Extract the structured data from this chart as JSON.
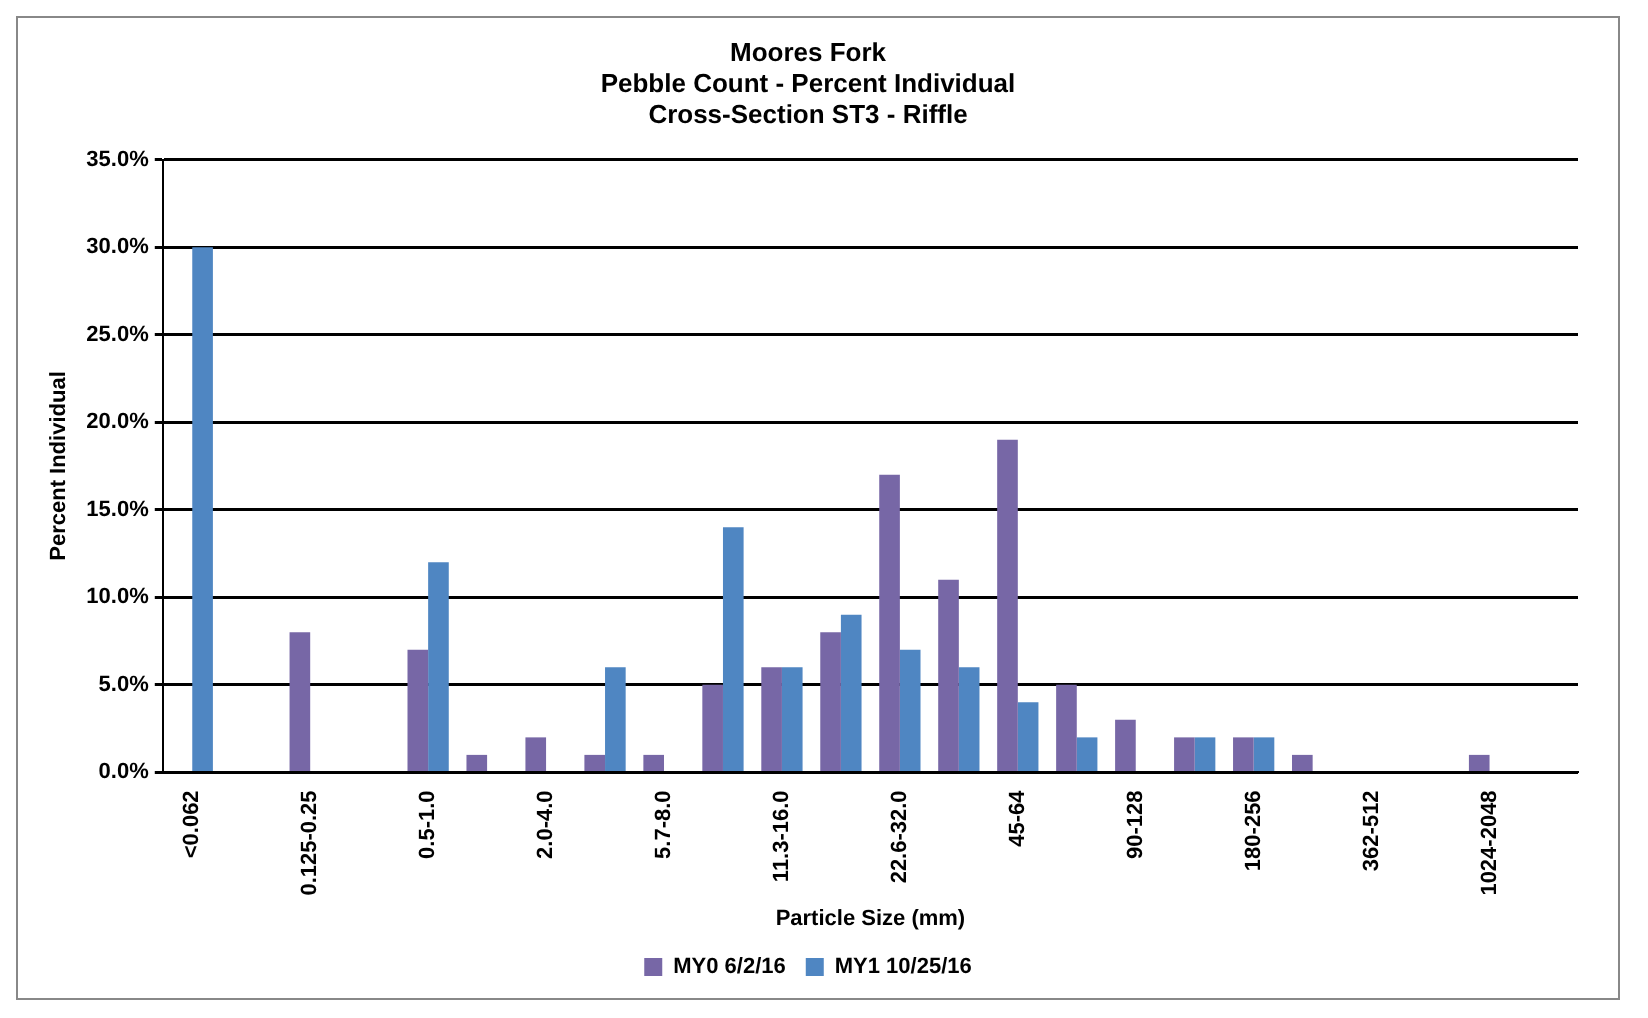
{
  "chart_data": {
    "type": "bar",
    "title": "Moores Fork\nPebble Count - Percent Individual\nCross-Section ST3 - Riffle",
    "xlabel": "Particle Size (mm)",
    "ylabel": "Percent Individual",
    "categories": [
      "<0.062",
      null,
      "0.125-0.25",
      null,
      "0.5-1.0",
      null,
      "2.0-4.0",
      null,
      "5.7-8.0",
      null,
      "11.3-16.0",
      null,
      "22.6-32.0",
      null,
      "45-64",
      null,
      "90-128",
      null,
      "180-256",
      null,
      "362-512",
      null,
      "1024-2048",
      null
    ],
    "series": [
      {
        "name": "MY0 6/2/16",
        "color": "#7767a6",
        "values": [
          0,
          0,
          8,
          0,
          7,
          1,
          2,
          1,
          1,
          5,
          6,
          8,
          17,
          11,
          19,
          5,
          3,
          2,
          2,
          1,
          0,
          0,
          1,
          0
        ]
      },
      {
        "name": "MY1 10/25/16",
        "color": "#4f86c2",
        "values": [
          30,
          0,
          0,
          0,
          12,
          0,
          0,
          6,
          0,
          14,
          6,
          9,
          7,
          6,
          4,
          2,
          0,
          2,
          2,
          0,
          0,
          0,
          0,
          0
        ]
      }
    ],
    "ylim": [
      0,
      35
    ],
    "yticks": [
      {
        "value": 0,
        "label": "0.0%"
      },
      {
        "value": 5,
        "label": "5.0%"
      },
      {
        "value": 10,
        "label": "10.0%"
      },
      {
        "value": 15,
        "label": "15.0%"
      },
      {
        "value": 20,
        "label": "20.0%"
      },
      {
        "value": 25,
        "label": "25.0%"
      },
      {
        "value": 30,
        "label": "30.0%"
      },
      {
        "value": 35,
        "label": "35.0%"
      }
    ],
    "grid": "y",
    "legend": "bottom"
  }
}
